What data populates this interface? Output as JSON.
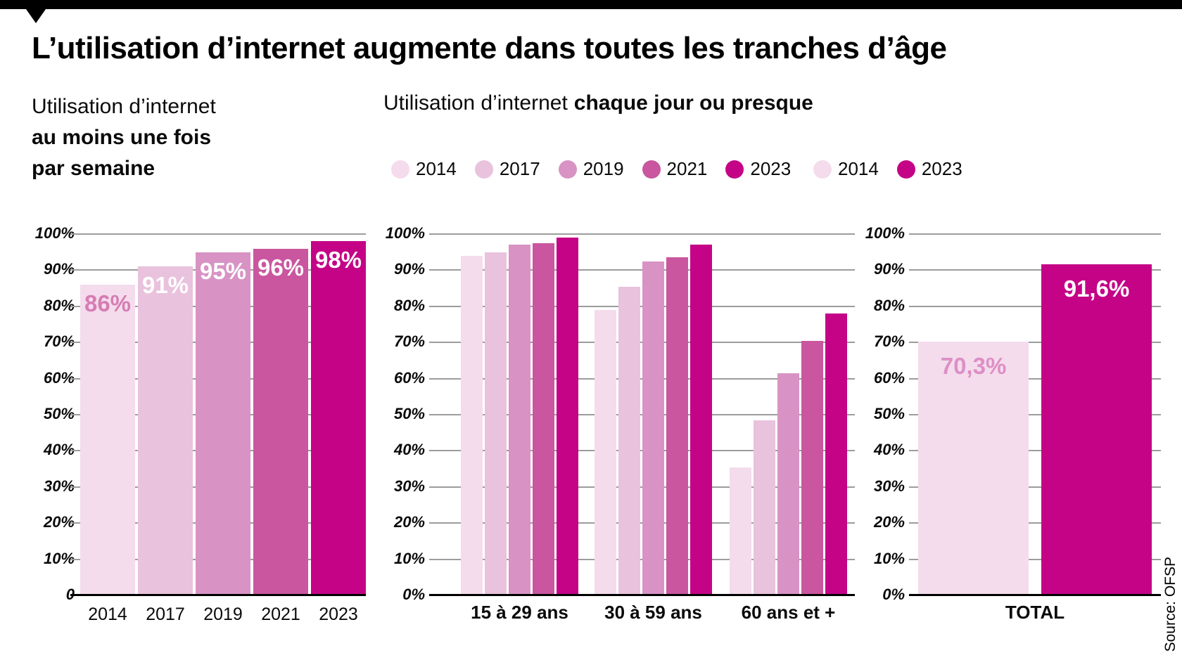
{
  "title": "L’utilisation d’internet augmente dans toutes les tranches d’âge",
  "subtitle_left": {
    "line1": "Utilisation d’internet",
    "line2": "au moins une fois",
    "line3": "par semaine"
  },
  "subtitle_middle": {
    "regular": "Utilisation d’internet",
    "bold": "chaque jour ou presque"
  },
  "source": "Source: OFSP",
  "colors": {
    "2014": "#f4dcec",
    "2017": "#e9c2dd",
    "2019": "#d893c4",
    "2021": "#c9569f",
    "2023": "#c40387",
    "grid": "#9c9c9c",
    "axis": "#000000",
    "label_pink_dark": "#d67db4",
    "label_pink_light": "#dd8fc6",
    "label_white": "#ffffff"
  },
  "legends": {
    "daily": [
      {
        "year": "2014"
      },
      {
        "year": "2017"
      },
      {
        "year": "2019"
      },
      {
        "year": "2021"
      },
      {
        "year": "2023"
      }
    ],
    "total": [
      {
        "year": "2014"
      },
      {
        "year": "2023"
      }
    ]
  },
  "chart_data": [
    {
      "id": "weekly",
      "type": "bar",
      "title": "Utilisation d’internet au moins une fois par semaine",
      "categories": [
        "2014",
        "2017",
        "2019",
        "2021",
        "2023"
      ],
      "values": [
        86,
        91,
        95,
        96,
        98
      ],
      "bar_colors": [
        "#f4dcec",
        "#e9c2dd",
        "#d893c4",
        "#c9569f",
        "#c40387"
      ],
      "bar_labels": [
        "86%",
        "91%",
        "95%",
        "96%",
        "98%"
      ],
      "bar_label_colors": [
        "#d67db4",
        "#ffffff",
        "#ffffff",
        "#ffffff",
        "#ffffff"
      ],
      "ylim": [
        0,
        100
      ],
      "grid": true,
      "ytick_labels": [
        "0",
        "10%",
        "20%",
        "30%",
        "40%",
        "50%",
        "60%",
        "70%",
        "80%",
        "90%",
        "100%"
      ]
    },
    {
      "id": "daily",
      "type": "grouped-bar",
      "title": "Utilisation d’internet chaque jour ou presque",
      "categories": [
        "15 à 29 ans",
        "30 à 59 ans",
        "60 ans et +"
      ],
      "series": [
        {
          "name": "2014",
          "color": "#f4dcec",
          "values": [
            94,
            79,
            35.5
          ]
        },
        {
          "name": "2017",
          "color": "#e9c2dd",
          "values": [
            95,
            85.5,
            48.5
          ]
        },
        {
          "name": "2019",
          "color": "#d893c4",
          "values": [
            97,
            92.5,
            61.5
          ]
        },
        {
          "name": "2021",
          "color": "#c9569f",
          "values": [
            97.5,
            93.5,
            70.5
          ]
        },
        {
          "name": "2023",
          "color": "#c40387",
          "values": [
            99,
            97,
            78
          ]
        }
      ],
      "ylim": [
        0,
        100
      ],
      "grid": true,
      "legend_position": "top",
      "ytick_labels": [
        "0%",
        "10%",
        "20%",
        "30%",
        "40%",
        "50%",
        "60%",
        "70%",
        "80%",
        "90%",
        "100%"
      ]
    },
    {
      "id": "total",
      "type": "grouped-bar",
      "title": "TOTAL",
      "categories": [
        "TOTAL"
      ],
      "series": [
        {
          "name": "2014",
          "color": "#f4dcec",
          "values": [
            70.3
          ]
        },
        {
          "name": "2023",
          "color": "#c40387",
          "values": [
            91.6
          ]
        }
      ],
      "bar_labels": [
        "70,3%",
        "91,6%"
      ],
      "bar_label_colors": [
        "#dd8fc6",
        "#ffffff"
      ],
      "ylim": [
        0,
        100
      ],
      "grid": true,
      "legend_position": "top",
      "ytick_labels": [
        "0%",
        "10%",
        "20%",
        "30%",
        "40%",
        "50%",
        "60%",
        "70%",
        "80%",
        "90%",
        "100%"
      ]
    }
  ]
}
